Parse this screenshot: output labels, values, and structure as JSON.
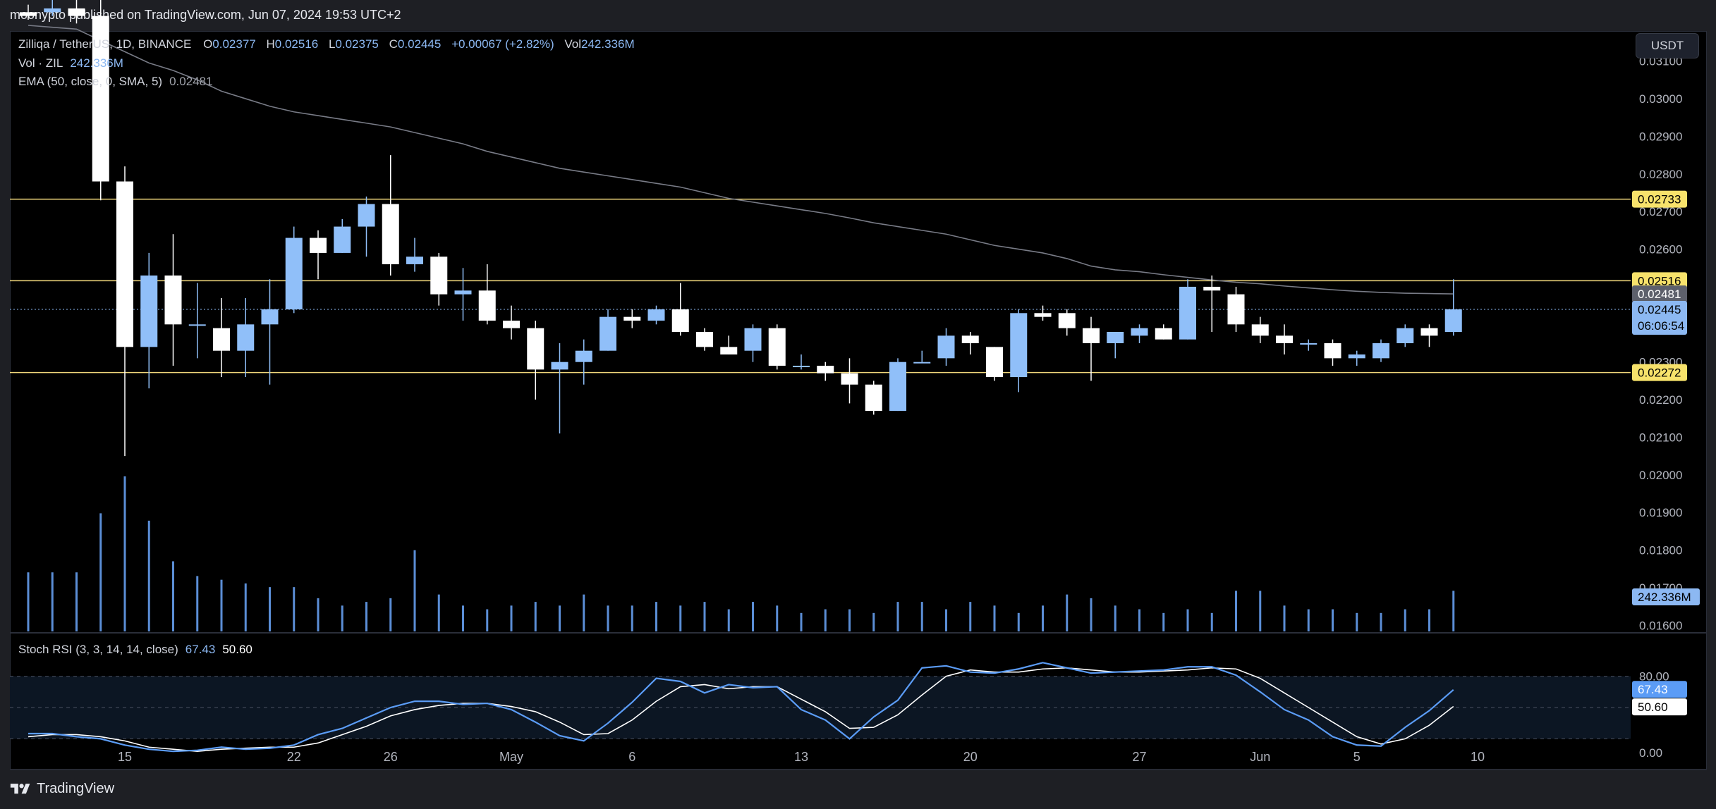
{
  "publish_line": "moonypto published on TradingView.com, Jun 07, 2024 19:53 UTC+2",
  "legend": {
    "symbol": "Zilliqa / TetherUS, 1D, BINANCE",
    "open_label": "O",
    "open": "0.02377",
    "high_label": "H",
    "high": "0.02516",
    "low_label": "L",
    "low": "0.02375",
    "close_label": "C",
    "close": "0.02445",
    "change": "+0.00067 (+2.82%)",
    "vol_label": "Vol",
    "vol": "242.336M",
    "volume_indicator": "Vol · ZIL",
    "volume_value": "242.336M",
    "ema_label": "EMA (50, close, 0, SMA, 5)",
    "ema_value": "0.02481",
    "stoch_label": "Stoch RSI (3, 3, 14, 14, close)",
    "stoch_k": "67.43",
    "stoch_d": "50.60"
  },
  "currency_button": "USDT",
  "brand": "TradingView",
  "colors": {
    "up": "#90bff9",
    "down": "#ffffff",
    "ema": "#787b86",
    "level_line": "#f0d77b",
    "level_label_bg": "#f7e26b",
    "stoch_k": "#5b9cf6",
    "stoch_d": "#ffffff"
  },
  "chart_data": {
    "type": "candlestick",
    "price_axis_ticks": [
      "0.03100",
      "0.03000",
      "0.02900",
      "0.02800",
      "0.02700",
      "0.02600",
      "0.02500",
      "0.02400",
      "0.02300",
      "0.02200",
      "0.02100",
      "0.02000",
      "0.01900",
      "0.01800",
      "0.01700",
      "0.01600"
    ],
    "price_tick_values": [
      0.031,
      0.03,
      0.029,
      0.028,
      0.027,
      0.026,
      0.025,
      0.024,
      0.023,
      0.022,
      0.021,
      0.02,
      0.019,
      0.018,
      0.017,
      0.016
    ],
    "y_range": [
      0.0158,
      0.0318
    ],
    "x_axis_labels": [
      {
        "label": "15",
        "day": 6
      },
      {
        "label": "22",
        "day": 13
      },
      {
        "label": "26",
        "day": 17
      },
      {
        "label": "May",
        "day": 22
      },
      {
        "label": "6",
        "day": 27
      },
      {
        "label": "13",
        "day": 34
      },
      {
        "label": "20",
        "day": 41
      },
      {
        "label": "27",
        "day": 48
      },
      {
        "label": "Jun",
        "day": 53
      },
      {
        "label": "5",
        "day": 57
      },
      {
        "label": "10",
        "day": 62
      }
    ],
    "candles": [
      {
        "o": 0.0323,
        "h": 0.0325,
        "l": 0.0321,
        "c": 0.0322
      },
      {
        "o": 0.0323,
        "h": 0.0328,
        "l": 0.0322,
        "c": 0.0324
      },
      {
        "o": 0.0324,
        "h": 0.0327,
        "l": 0.032,
        "c": 0.0322
      },
      {
        "o": 0.0322,
        "h": 0.0336,
        "l": 0.0273,
        "c": 0.0278
      },
      {
        "o": 0.0278,
        "h": 0.0282,
        "l": 0.0205,
        "c": 0.0234
      },
      {
        "o": 0.0234,
        "h": 0.0259,
        "l": 0.0223,
        "c": 0.0253
      },
      {
        "o": 0.0253,
        "h": 0.0264,
        "l": 0.0229,
        "c": 0.024
      },
      {
        "o": 0.024,
        "h": 0.0251,
        "l": 0.0231,
        "c": 0.024
      },
      {
        "o": 0.0239,
        "h": 0.0247,
        "l": 0.0226,
        "c": 0.0233
      },
      {
        "o": 0.0233,
        "h": 0.0247,
        "l": 0.0226,
        "c": 0.024
      },
      {
        "o": 0.024,
        "h": 0.0252,
        "l": 0.0224,
        "c": 0.0244
      },
      {
        "o": 0.0244,
        "h": 0.0266,
        "l": 0.0243,
        "c": 0.0263
      },
      {
        "o": 0.0263,
        "h": 0.0265,
        "l": 0.0252,
        "c": 0.0259
      },
      {
        "o": 0.0259,
        "h": 0.0268,
        "l": 0.0259,
        "c": 0.0266
      },
      {
        "o": 0.0266,
        "h": 0.0274,
        "l": 0.0258,
        "c": 0.0272
      },
      {
        "o": 0.0272,
        "h": 0.0285,
        "l": 0.0253,
        "c": 0.0256
      },
      {
        "o": 0.0256,
        "h": 0.0263,
        "l": 0.0254,
        "c": 0.0258
      },
      {
        "o": 0.0258,
        "h": 0.0259,
        "l": 0.0245,
        "c": 0.0248
      },
      {
        "o": 0.0248,
        "h": 0.0255,
        "l": 0.0241,
        "c": 0.0249
      },
      {
        "o": 0.0249,
        "h": 0.0256,
        "l": 0.024,
        "c": 0.0241
      },
      {
        "o": 0.0241,
        "h": 0.0245,
        "l": 0.0236,
        "c": 0.0239
      },
      {
        "o": 0.0239,
        "h": 0.0241,
        "l": 0.022,
        "c": 0.0228
      },
      {
        "o": 0.0228,
        "h": 0.0235,
        "l": 0.0211,
        "c": 0.023
      },
      {
        "o": 0.023,
        "h": 0.0236,
        "l": 0.0224,
        "c": 0.0233
      },
      {
        "o": 0.0233,
        "h": 0.0244,
        "l": 0.0233,
        "c": 0.0242
      },
      {
        "o": 0.0242,
        "h": 0.0244,
        "l": 0.0239,
        "c": 0.0241
      },
      {
        "o": 0.0241,
        "h": 0.0245,
        "l": 0.024,
        "c": 0.0244
      },
      {
        "o": 0.0244,
        "h": 0.0251,
        "l": 0.0237,
        "c": 0.0238
      },
      {
        "o": 0.0238,
        "h": 0.0239,
        "l": 0.0233,
        "c": 0.0234
      },
      {
        "o": 0.0234,
        "h": 0.0237,
        "l": 0.0232,
        "c": 0.0232
      },
      {
        "o": 0.0233,
        "h": 0.024,
        "l": 0.023,
        "c": 0.0239
      },
      {
        "o": 0.0239,
        "h": 0.024,
        "l": 0.0228,
        "c": 0.0229
      },
      {
        "o": 0.0229,
        "h": 0.0232,
        "l": 0.0228,
        "c": 0.0229
      },
      {
        "o": 0.0229,
        "h": 0.023,
        "l": 0.0225,
        "c": 0.0227
      },
      {
        "o": 0.0227,
        "h": 0.0231,
        "l": 0.0219,
        "c": 0.0224
      },
      {
        "o": 0.0224,
        "h": 0.0225,
        "l": 0.0216,
        "c": 0.0217
      },
      {
        "o": 0.0217,
        "h": 0.0231,
        "l": 0.0217,
        "c": 0.023
      },
      {
        "o": 0.023,
        "h": 0.0233,
        "l": 0.023,
        "c": 0.023
      },
      {
        "o": 0.0231,
        "h": 0.0239,
        "l": 0.0229,
        "c": 0.0237
      },
      {
        "o": 0.0237,
        "h": 0.0238,
        "l": 0.0232,
        "c": 0.0235
      },
      {
        "o": 0.0234,
        "h": 0.0234,
        "l": 0.0225,
        "c": 0.0226
      },
      {
        "o": 0.0226,
        "h": 0.0244,
        "l": 0.0222,
        "c": 0.0243
      },
      {
        "o": 0.0243,
        "h": 0.0245,
        "l": 0.0241,
        "c": 0.0242
      },
      {
        "o": 0.0243,
        "h": 0.0244,
        "l": 0.0237,
        "c": 0.0239
      },
      {
        "o": 0.0239,
        "h": 0.0242,
        "l": 0.0225,
        "c": 0.0235
      },
      {
        "o": 0.0235,
        "h": 0.0238,
        "l": 0.0231,
        "c": 0.0238
      },
      {
        "o": 0.0237,
        "h": 0.024,
        "l": 0.0235,
        "c": 0.0239
      },
      {
        "o": 0.0239,
        "h": 0.024,
        "l": 0.0236,
        "c": 0.0236
      },
      {
        "o": 0.0236,
        "h": 0.0252,
        "l": 0.0236,
        "c": 0.025
      },
      {
        "o": 0.025,
        "h": 0.0253,
        "l": 0.0238,
        "c": 0.0249
      },
      {
        "o": 0.0248,
        "h": 0.025,
        "l": 0.0238,
        "c": 0.024
      },
      {
        "o": 0.024,
        "h": 0.0242,
        "l": 0.0235,
        "c": 0.0237
      },
      {
        "o": 0.0237,
        "h": 0.024,
        "l": 0.0232,
        "c": 0.0235
      },
      {
        "o": 0.0235,
        "h": 0.0236,
        "l": 0.0233,
        "c": 0.0235
      },
      {
        "o": 0.0235,
        "h": 0.0236,
        "l": 0.0229,
        "c": 0.0231
      },
      {
        "o": 0.0231,
        "h": 0.0233,
        "l": 0.0229,
        "c": 0.0232
      },
      {
        "o": 0.0231,
        "h": 0.0236,
        "l": 0.023,
        "c": 0.0235
      },
      {
        "o": 0.0235,
        "h": 0.024,
        "l": 0.0234,
        "c": 0.0239
      },
      {
        "o": 0.0239,
        "h": 0.024,
        "l": 0.0234,
        "c": 0.0237
      },
      {
        "o": 0.0238,
        "h": 0.0252,
        "l": 0.0237,
        "c": 0.0244
      }
    ],
    "volumes": [
      80,
      80,
      80,
      160,
      210,
      150,
      95,
      75,
      70,
      65,
      60,
      60,
      45,
      35,
      40,
      45,
      110,
      50,
      35,
      30,
      35,
      40,
      35,
      50,
      35,
      35,
      40,
      35,
      40,
      30,
      40,
      35,
      25,
      30,
      30,
      25,
      40,
      40,
      30,
      40,
      35,
      25,
      35,
      50,
      45,
      35,
      30,
      25,
      30,
      25,
      55,
      55,
      35,
      30,
      30,
      25,
      25,
      30,
      30,
      55
    ],
    "volume_max": 210,
    "ema": [
      0.03195,
      0.0319,
      0.03185,
      0.03155,
      0.03125,
      0.03095,
      0.03075,
      0.0305,
      0.0302,
      0.03,
      0.0298,
      0.02965,
      0.02955,
      0.02945,
      0.02935,
      0.02925,
      0.0291,
      0.02895,
      0.0288,
      0.0286,
      0.02845,
      0.0283,
      0.02815,
      0.02805,
      0.02795,
      0.02785,
      0.02775,
      0.02765,
      0.0275,
      0.02735,
      0.02725,
      0.02715,
      0.02705,
      0.02695,
      0.02683,
      0.0267,
      0.0266,
      0.0265,
      0.0264,
      0.02625,
      0.0261,
      0.026,
      0.0259,
      0.02575,
      0.02555,
      0.02545,
      0.0254,
      0.02532,
      0.02525,
      0.02518,
      0.02512,
      0.02508,
      0.02502,
      0.02497,
      0.02492,
      0.02488,
      0.02485,
      0.02483,
      0.02482,
      0.02481
    ],
    "horizontal_levels": [
      {
        "value": 0.02733,
        "label": "0.02733"
      },
      {
        "value": 0.02516,
        "label": "0.02516"
      },
      {
        "value": 0.02272,
        "label": "0.02272"
      }
    ],
    "last_price_label": "0.02445",
    "countdown": "06:06:54",
    "ema_price_label": "0.02481",
    "volume_label": "242.336M",
    "stoch": {
      "ticks": [
        "80.00",
        "0.00"
      ],
      "upper_band": 80,
      "lower_band": 20,
      "mid": 50,
      "k": [
        25,
        25,
        22,
        20,
        14,
        10,
        8,
        9,
        12,
        10,
        11,
        14,
        24,
        30,
        40,
        50,
        56,
        56,
        53,
        54,
        48,
        36,
        23,
        18,
        35,
        55,
        78,
        75,
        64,
        72,
        69,
        70,
        48,
        38,
        20,
        41,
        57,
        88,
        90,
        84,
        83,
        87,
        93,
        88,
        83,
        84,
        85,
        86,
        89,
        89,
        81,
        65,
        48,
        38,
        22,
        14,
        13,
        31,
        47,
        67
      ],
      "d": [
        22,
        24,
        24,
        22,
        18,
        12,
        10,
        8,
        10,
        11,
        12,
        12,
        16,
        24,
        32,
        42,
        48,
        52,
        54,
        54,
        51,
        46,
        36,
        24,
        25,
        38,
        56,
        70,
        72,
        68,
        70,
        70,
        58,
        46,
        30,
        31,
        43,
        62,
        80,
        86,
        84,
        84,
        87,
        88,
        86,
        84,
        84,
        85,
        86,
        88,
        87,
        78,
        64,
        50,
        36,
        22,
        15,
        20,
        33,
        51
      ]
    }
  }
}
